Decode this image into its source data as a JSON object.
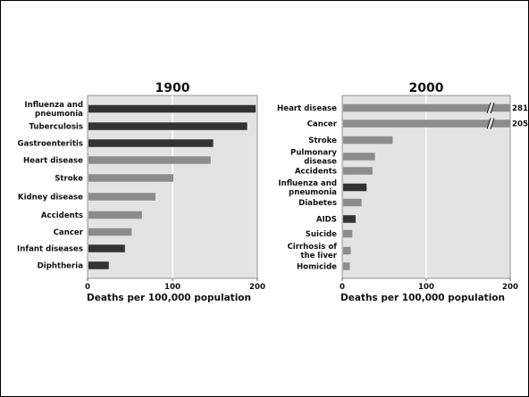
{
  "colors": {
    "dark": "#333333",
    "light": "#8c8c8c",
    "panel": "#e3e3e3",
    "grid": "#ffffff",
    "text": "#111111"
  },
  "chart_data": [
    {
      "type": "bar",
      "orientation": "horizontal",
      "title": "1900",
      "xlabel": "Deaths per 100,000 population",
      "ylabel": "",
      "xlim": [
        0,
        200
      ],
      "xticks": [
        "0",
        "100",
        "200"
      ],
      "grid": true,
      "categories": [
        [
          "Influenza and",
          "pneumonia"
        ],
        [
          "Tuberculosis"
        ],
        [
          "Gastroenteritis"
        ],
        [
          "Heart disease"
        ],
        [
          "Stroke"
        ],
        [
          "Kidney disease"
        ],
        [
          "Accidents"
        ],
        [
          "Cancer"
        ],
        [
          "Infant diseases"
        ],
        [
          "Diphtheria"
        ]
      ],
      "values": [
        198,
        188,
        148,
        145,
        101,
        80,
        64,
        52,
        44,
        25
      ],
      "bar_colors": [
        "dark",
        "dark",
        "dark",
        "light",
        "light",
        "light",
        "light",
        "light",
        "dark",
        "dark"
      ]
    },
    {
      "type": "bar",
      "orientation": "horizontal",
      "title": "2000",
      "xlabel": "Deaths per 100,000 population",
      "ylabel": "",
      "xlim": [
        0,
        200
      ],
      "xticks": [
        "0",
        "100",
        "200"
      ],
      "grid": true,
      "categories": [
        [
          "Heart disease"
        ],
        [
          "Cancer"
        ],
        [
          "Stroke"
        ],
        [
          "Pulmonary",
          "disease"
        ],
        [
          "Accidents"
        ],
        [
          "Influenza and",
          "pneumonia"
        ],
        [
          "Diabetes"
        ],
        [
          "AIDS"
        ],
        [
          "Suicide"
        ],
        [
          "Cirrhosis of",
          "the liver"
        ],
        [
          "Homicide"
        ]
      ],
      "values": [
        281,
        205,
        60,
        39,
        36,
        29,
        23,
        16,
        12,
        10,
        9
      ],
      "data_labels": [
        "281",
        "205",
        "",
        "",
        "",
        "",
        "",
        "",
        "",
        "",
        ""
      ],
      "axis_break_values": [
        281,
        205
      ],
      "bar_colors": [
        "light",
        "light",
        "light",
        "light",
        "light",
        "dark",
        "light",
        "dark",
        "light",
        "light",
        "light"
      ]
    }
  ]
}
